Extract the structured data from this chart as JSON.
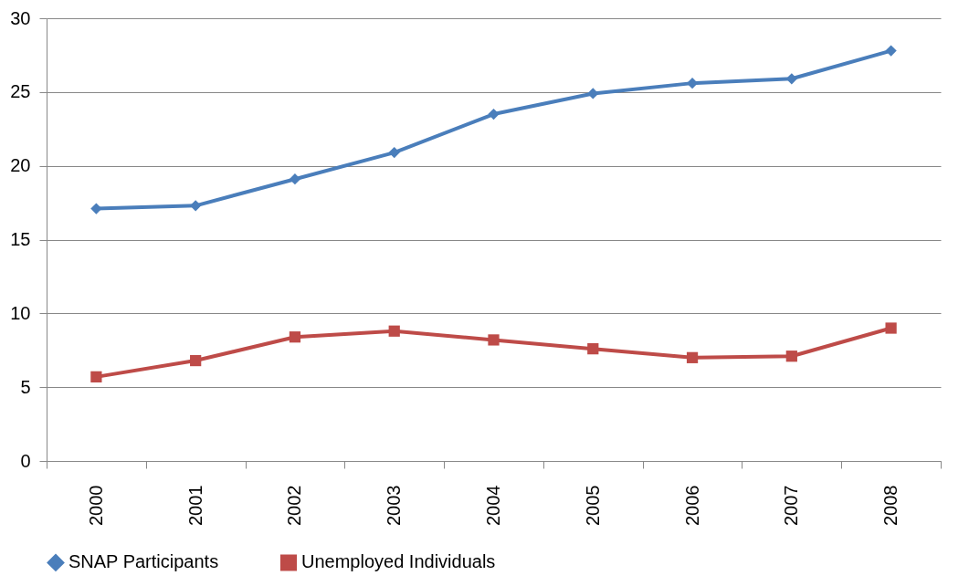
{
  "chart_data": {
    "type": "line",
    "categories": [
      "2000",
      "2001",
      "2002",
      "2003",
      "2004",
      "2005",
      "2006",
      "2007",
      "2008"
    ],
    "series": [
      {
        "name": "SNAP Participants",
        "color": "#4a7ebb",
        "marker": "diamond",
        "values": [
          17.1,
          17.3,
          19.1,
          20.9,
          23.5,
          24.9,
          25.6,
          25.9,
          27.8
        ]
      },
      {
        "name": "Unemployed Individuals",
        "color": "#be4b48",
        "marker": "square",
        "values": [
          5.7,
          6.8,
          8.4,
          8.8,
          8.2,
          7.6,
          7.0,
          7.1,
          9.0
        ]
      }
    ],
    "ylim": [
      0,
      30
    ],
    "yticks": [
      0,
      5,
      10,
      15,
      20,
      25,
      30
    ],
    "grid": "y",
    "legend": "bottom",
    "line_style": "solid"
  }
}
